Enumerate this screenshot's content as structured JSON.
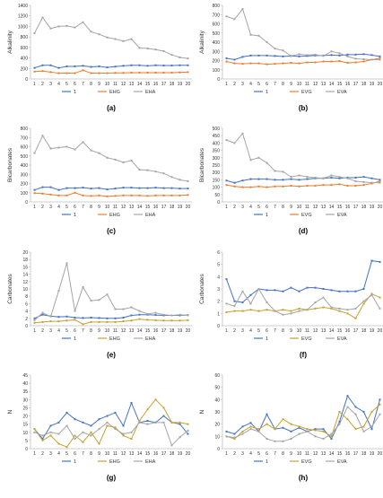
{
  "colors": {
    "s1": "#4472C4",
    "s2": "#ED7D31",
    "s2b": "#C5A230",
    "s3": "#A5A5A5",
    "axis": "#BFBFBF",
    "text": "#333333"
  },
  "chart_data": [
    {
      "panel": "(a)",
      "type": "line",
      "ylabel": "Alkalinity",
      "ylim": [
        0,
        1400
      ],
      "yticks": [
        0,
        200,
        400,
        600,
        800,
        1000,
        1200,
        1400
      ],
      "x": [
        1,
        2,
        3,
        4,
        5,
        6,
        7,
        8,
        9,
        10,
        11,
        12,
        13,
        14,
        15,
        16,
        17,
        18,
        19,
        20
      ],
      "series": [
        {
          "name": "1",
          "color": "s1",
          "values": [
            210,
            260,
            260,
            210,
            240,
            240,
            250,
            230,
            240,
            220,
            235,
            250,
            260,
            260,
            250,
            260,
            255,
            255,
            260,
            260
          ]
        },
        {
          "name": "EHG",
          "color": "s2",
          "values": [
            140,
            150,
            130,
            110,
            110,
            110,
            165,
            110,
            110,
            110,
            115,
            115,
            120,
            120,
            120,
            120,
            120,
            120,
            125,
            130
          ]
        },
        {
          "name": "EHA",
          "color": "s3",
          "values": [
            870,
            1170,
            960,
            1000,
            1010,
            980,
            1080,
            900,
            850,
            790,
            760,
            720,
            760,
            590,
            580,
            560,
            530,
            460,
            410,
            390
          ]
        }
      ]
    },
    {
      "panel": "(b)",
      "type": "line",
      "ylabel": "Alkalinity",
      "ylim": [
        0,
        800
      ],
      "yticks": [
        0,
        100,
        200,
        300,
        400,
        500,
        600,
        700,
        800
      ],
      "x": [
        1,
        2,
        3,
        4,
        5,
        6,
        7,
        8,
        9,
        10,
        11,
        12,
        13,
        14,
        15,
        16,
        17,
        18,
        19,
        20
      ],
      "series": [
        {
          "name": "1",
          "color": "s1",
          "values": [
            225,
            210,
            240,
            255,
            255,
            255,
            250,
            245,
            250,
            245,
            250,
            255,
            255,
            260,
            255,
            265,
            265,
            270,
            260,
            245
          ]
        },
        {
          "name": "EVG",
          "color": "s2",
          "values": [
            190,
            170,
            165,
            170,
            170,
            160,
            165,
            170,
            175,
            170,
            180,
            180,
            190,
            190,
            195,
            175,
            180,
            190,
            210,
            225
          ]
        },
        {
          "name": "EVA",
          "color": "s3",
          "values": [
            680,
            650,
            760,
            480,
            470,
            400,
            330,
            310,
            250,
            270,
            260,
            265,
            250,
            300,
            280,
            245,
            220,
            215,
            210,
            210
          ]
        }
      ]
    },
    {
      "panel": "(c)",
      "type": "line",
      "ylabel": "Bicarbonates",
      "ylim": [
        0,
        800
      ],
      "yticks": [
        0,
        100,
        200,
        300,
        400,
        500,
        600,
        700,
        800
      ],
      "x": [
        1,
        2,
        3,
        4,
        5,
        6,
        7,
        8,
        9,
        10,
        11,
        12,
        13,
        14,
        15,
        16,
        17,
        18,
        19,
        20
      ],
      "series": [
        {
          "name": "1",
          "color": "s1",
          "values": [
            130,
            160,
            160,
            130,
            150,
            150,
            155,
            145,
            150,
            135,
            145,
            155,
            155,
            150,
            150,
            155,
            150,
            150,
            145,
            145
          ]
        },
        {
          "name": "EHG",
          "color": "s2",
          "values": [
            95,
            90,
            80,
            70,
            70,
            100,
            70,
            65,
            70,
            60,
            65,
            70,
            70,
            70,
            65,
            70,
            70,
            70,
            70,
            75
          ]
        },
        {
          "name": "EHA",
          "color": "s3",
          "values": [
            530,
            720,
            580,
            590,
            600,
            570,
            650,
            560,
            530,
            480,
            460,
            430,
            450,
            350,
            345,
            330,
            310,
            270,
            240,
            225
          ]
        }
      ]
    },
    {
      "panel": "(d)",
      "type": "line",
      "ylabel": "Bicarbonates",
      "ylim": [
        0,
        500
      ],
      "yticks": [
        0,
        50,
        100,
        150,
        200,
        250,
        300,
        350,
        400,
        450,
        500
      ],
      "x": [
        1,
        2,
        3,
        4,
        5,
        6,
        7,
        8,
        9,
        10,
        11,
        12,
        13,
        14,
        15,
        16,
        17,
        18,
        19,
        20
      ],
      "series": [
        {
          "name": "1",
          "color": "s1",
          "values": [
            145,
            130,
            145,
            155,
            155,
            155,
            150,
            150,
            155,
            150,
            155,
            160,
            160,
            165,
            160,
            165,
            165,
            170,
            160,
            150
          ]
        },
        {
          "name": "EVG",
          "color": "s2",
          "values": [
            115,
            105,
            100,
            100,
            105,
            100,
            105,
            105,
            110,
            105,
            110,
            110,
            115,
            115,
            120,
            110,
            110,
            115,
            125,
            140
          ]
        },
        {
          "name": "EVA",
          "color": "s3",
          "values": [
            420,
            400,
            465,
            285,
            300,
            265,
            210,
            205,
            170,
            180,
            170,
            165,
            160,
            180,
            170,
            160,
            140,
            135,
            130,
            130
          ]
        }
      ]
    },
    {
      "panel": "(e)",
      "type": "line",
      "ylabel": "Carbonates",
      "ylim": [
        0,
        20
      ],
      "yticks": [
        0,
        2,
        4,
        6,
        8,
        10,
        12,
        14,
        16,
        18,
        20
      ],
      "x": [
        1,
        2,
        3,
        4,
        5,
        6,
        7,
        8,
        9,
        10,
        11,
        12,
        13,
        14,
        15,
        16,
        17,
        18,
        19,
        20
      ],
      "series": [
        {
          "name": "1",
          "color": "s1",
          "values": [
            2.0,
            3.0,
            2.6,
            2.4,
            2.5,
            2.2,
            2.1,
            2.2,
            2.1,
            2.0,
            2.0,
            2.2,
            2.8,
            3.0,
            3.0,
            2.9,
            2.8,
            2.8,
            2.8,
            2.9
          ]
        },
        {
          "name": "EHG",
          "color": "s2b",
          "values": [
            0.8,
            1.0,
            1.2,
            1.2,
            1.4,
            1.6,
            0.4,
            1.0,
            1.0,
            1.0,
            1.0,
            1.2,
            1.4,
            1.8,
            1.6,
            1.5,
            1.4,
            1.4,
            1.4,
            1.5
          ]
        },
        {
          "name": "EHA",
          "color": "s3",
          "values": [
            1.5,
            3.5,
            2.5,
            9.5,
            17.0,
            4.0,
            10.5,
            6.8,
            7.0,
            8.5,
            4.5,
            4.5,
            5.0,
            4.0,
            3.2,
            3.5,
            3.0,
            2.8,
            3.0,
            2.8
          ]
        }
      ]
    },
    {
      "panel": "(f)",
      "type": "line",
      "ylabel": "Carbonates",
      "ylim": [
        0,
        6
      ],
      "yticks": [
        0,
        1,
        2,
        3,
        4,
        5,
        6
      ],
      "x": [
        1,
        2,
        3,
        4,
        5,
        6,
        7,
        8,
        9,
        10,
        11,
        12,
        13,
        14,
        15,
        16,
        17,
        18,
        19,
        20
      ],
      "series": [
        {
          "name": "1",
          "color": "s1",
          "values": [
            3.8,
            2.0,
            1.9,
            2.5,
            3.0,
            2.9,
            2.9,
            2.8,
            3.1,
            2.8,
            3.1,
            3.1,
            3.0,
            2.9,
            2.8,
            2.8,
            2.8,
            3.0,
            5.3,
            5.2
          ]
        },
        {
          "name": "EVG",
          "color": "s2b",
          "values": [
            1.1,
            1.2,
            1.2,
            1.3,
            1.2,
            1.3,
            1.2,
            1.3,
            1.2,
            1.4,
            1.3,
            1.4,
            1.5,
            1.4,
            1.2,
            1.0,
            0.6,
            1.8,
            2.6,
            2.3
          ]
        },
        {
          "name": "EVA",
          "color": "s3",
          "values": [
            1.8,
            1.6,
            2.8,
            1.8,
            3.0,
            1.9,
            1.2,
            0.9,
            1.0,
            1.2,
            1.3,
            1.9,
            2.3,
            1.5,
            1.4,
            1.3,
            1.4,
            2.0,
            2.5,
            1.4
          ]
        }
      ]
    },
    {
      "panel": "(g)",
      "type": "line",
      "ylabel": "N",
      "ylim": [
        0,
        45
      ],
      "yticks": [
        0,
        5,
        10,
        15,
        20,
        25,
        30,
        35,
        40,
        45
      ],
      "x": [
        1,
        2,
        3,
        4,
        5,
        6,
        7,
        8,
        9,
        10,
        11,
        12,
        13,
        14,
        15,
        16,
        17,
        18,
        19,
        20
      ],
      "series": [
        {
          "name": "1",
          "color": "s1",
          "values": [
            12,
            6,
            14,
            16,
            22,
            18,
            16,
            14,
            18,
            20,
            22,
            14,
            28,
            16,
            17,
            16,
            20,
            16,
            15,
            9
          ]
        },
        {
          "name": "EHG",
          "color": "s2b",
          "values": [
            12,
            5,
            8,
            3,
            1,
            8,
            4,
            10,
            3,
            14,
            13,
            8,
            6,
            17,
            24,
            30,
            25,
            16,
            16,
            15
          ]
        },
        {
          "name": "EHA",
          "color": "s3",
          "values": [
            10,
            8,
            10,
            9,
            14,
            6,
            10,
            8,
            12,
            16,
            12,
            9,
            10,
            16,
            15,
            16,
            16,
            2,
            7,
            11
          ]
        }
      ]
    },
    {
      "panel": "(h)",
      "type": "line",
      "ylabel": "N",
      "ylim": [
        0,
        60
      ],
      "yticks": [
        0,
        10,
        20,
        30,
        40,
        50,
        60
      ],
      "x": [
        1,
        2,
        3,
        4,
        5,
        6,
        7,
        8,
        9,
        10,
        11,
        12,
        13,
        14,
        15,
        16,
        17,
        18,
        19,
        20
      ],
      "series": [
        {
          "name": "1",
          "color": "s1",
          "values": [
            14,
            12,
            18,
            21,
            14,
            28,
            16,
            17,
            14,
            17,
            14,
            16,
            16,
            8,
            22,
            43,
            34,
            30,
            16,
            40
          ]
        },
        {
          "name": "EVG",
          "color": "s2b",
          "values": [
            10,
            8,
            14,
            18,
            16,
            20,
            16,
            24,
            20,
            18,
            16,
            15,
            14,
            10,
            30,
            24,
            16,
            18,
            30,
            36
          ]
        },
        {
          "name": "EVA",
          "color": "s3",
          "values": [
            10,
            9,
            12,
            16,
            14,
            8,
            6,
            6,
            8,
            12,
            14,
            10,
            8,
            12,
            20,
            34,
            28,
            14,
            18,
            28
          ]
        }
      ]
    }
  ]
}
